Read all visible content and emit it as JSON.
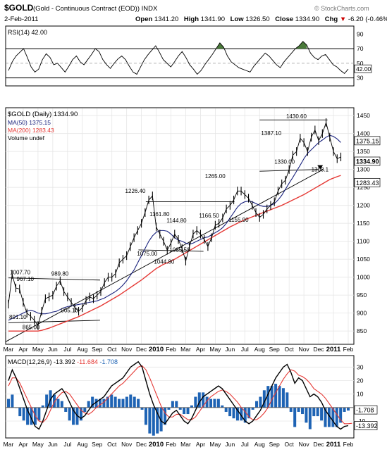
{
  "header": {
    "title": "$GOLD",
    "subtitle": "(Gold - Continuous Contract (EOD)) INDX",
    "watermark": "© StockCharts.com",
    "date": "2-Feb-2011",
    "open_label": "Open",
    "open": "1341.20",
    "high_label": "High",
    "high": "1341.90",
    "low_label": "Low",
    "low": "1326.50",
    "close_label": "Close",
    "close": "1334.90",
    "chg_label": "Chg",
    "chg": "-6.20 (-0.46%)",
    "chg_arrow": "▼"
  },
  "colors": {
    "price": "#000000",
    "ma50": "#1a237e",
    "ma200": "#e53935",
    "macd": "#000000",
    "signal": "#e53935",
    "hist": "#1e63b4",
    "overbought_fill": "#4a7a3a",
    "legend_blue": "#1a237e",
    "legend_red": "#e53935"
  },
  "chart_data": [
    {
      "type": "line",
      "panel": "rsi",
      "legend": "RSI(14) 42.00",
      "ylim": [
        20,
        100
      ],
      "y_ticks": [
        30,
        50,
        70,
        90
      ],
      "reference_lines": [
        30,
        70
      ],
      "last_value": "42.00",
      "series": [
        {
          "values": [
            40,
            52,
            60,
            65,
            70,
            58,
            45,
            38,
            42,
            55,
            63,
            58,
            48,
            50,
            44,
            38,
            46,
            55,
            60,
            52,
            48,
            55,
            62,
            70,
            66,
            55,
            48,
            43,
            50,
            56,
            60,
            55,
            46,
            38,
            35,
            45,
            55,
            62,
            68,
            74,
            65,
            55,
            50,
            45,
            52,
            60,
            66,
            58,
            48,
            42,
            35,
            40,
            48,
            55,
            62,
            70,
            78,
            72,
            60,
            52,
            48,
            44,
            42,
            40,
            38,
            46,
            52,
            58,
            64,
            60,
            54,
            48,
            44,
            52,
            58,
            64,
            70,
            74,
            80,
            75,
            64,
            58,
            55,
            60,
            62,
            55,
            48,
            45,
            40,
            36,
            42
          ]
        }
      ]
    },
    {
      "type": "line",
      "panel": "price",
      "legend": [
        {
          "name": "$GOLD (Daily) 1334.90",
          "color": "#000000"
        },
        {
          "name": "MA(50) 1375.15",
          "color": "#1a237e"
        },
        {
          "name": "MA(200) 1283.43",
          "color": "#e53935"
        },
        {
          "name": "Volume undef",
          "color": "#000000"
        }
      ],
      "ylim": [
        815,
        1470
      ],
      "y_ticks": [
        850,
        900,
        950,
        1000,
        1050,
        1100,
        1150,
        1200,
        1250,
        1300,
        1350,
        1400,
        1450
      ],
      "x_ticks": [
        "Mar",
        "Apr",
        "May",
        "Jun",
        "Jul",
        "Aug",
        "Sep",
        "Oct",
        "Nov",
        "Dec",
        "2010",
        "Feb",
        "Mar",
        "Apr",
        "May",
        "Jun",
        "Jul",
        "Aug",
        "Sep",
        "Oct",
        "Nov",
        "Dec",
        "2011",
        "Feb"
      ],
      "x": [
        0,
        0.25,
        0.5,
        0.75,
        1,
        1.25,
        1.5,
        1.75,
        2,
        2.25,
        2.5,
        2.75,
        3,
        3.25,
        3.5,
        3.75,
        4,
        4.25,
        4.5,
        4.75,
        5,
        5.25,
        5.5,
        5.75,
        6,
        6.25,
        6.5,
        6.75,
        7,
        7.25,
        7.5,
        7.75,
        8,
        8.25,
        8.5,
        8.75,
        9,
        9.25,
        9.5,
        9.75,
        10,
        10.25,
        10.5,
        10.75,
        11,
        11.25,
        11.5,
        11.75,
        12,
        12.25,
        12.5,
        12.75,
        13,
        13.25,
        13.5,
        13.75,
        14,
        14.25,
        14.5,
        14.75,
        15,
        15.25,
        15.5,
        15.75,
        16,
        16.25,
        16.5,
        16.75,
        17,
        17.25,
        17.5,
        17.75,
        18,
        18.25,
        18.5,
        18.75,
        19,
        19.25,
        19.5,
        19.75,
        20,
        20.25,
        20.5,
        20.75,
        21,
        21.25,
        21.5,
        21.75,
        22,
        22.25,
        22.5
      ],
      "series": [
        {
          "values": [
            925,
            1007.7,
            970,
            967.1,
            930,
            900,
            891.1,
            880,
            865,
            905,
            940,
            945,
            950,
            975,
            989.8,
            960,
            945,
            930,
            915,
            905.1,
            915,
            935,
            945,
            940,
            950,
            960,
            985,
            1000,
            1000,
            1010,
            1040,
            1050,
            1060,
            1085,
            1110,
            1130,
            1150,
            1180,
            1215,
            1226.4,
            1140,
            1120,
            1100,
            1075,
            1095,
            1120,
            1105,
            1080,
            1044.8,
            1085,
            1120,
            1130,
            1120,
            1105,
            1085.5,
            1110,
            1144.8,
            1150,
            1165,
            1190,
            1200,
            1215,
            1240,
            1240,
            1230,
            1220,
            1200,
            1180,
            1166.5,
            1175,
            1190,
            1200,
            1210,
            1240,
            1260,
            1270,
            1300,
            1340,
            1350,
            1387.1,
            1375,
            1350,
            1390,
            1410,
            1380,
            1400,
            1430.6,
            1390,
            1350,
            1330,
            1334.9
          ]
        },
        {
          "values": [
            880,
            885,
            890,
            895,
            900,
            905,
            908,
            905,
            900,
            898,
            898,
            900,
            903,
            905,
            910,
            915,
            918,
            920,
            922,
            924,
            926,
            928,
            930,
            932,
            934,
            938,
            942,
            948,
            954,
            960,
            968,
            978,
            990,
            1005,
            1020,
            1040,
            1060,
            1080,
            1100,
            1115,
            1125,
            1130,
            1130,
            1128,
            1120,
            1110,
            1103,
            1100,
            1095,
            1092,
            1095,
            1100,
            1105,
            1110,
            1112,
            1118,
            1124,
            1130,
            1138,
            1150,
            1165,
            1180,
            1195,
            1205,
            1210,
            1212,
            1210,
            1205,
            1200,
            1197,
            1197,
            1200,
            1205,
            1215,
            1228,
            1245,
            1262,
            1278,
            1295,
            1312,
            1330,
            1345,
            1355,
            1365,
            1375,
            1382,
            1390,
            1395,
            1392,
            1385,
            1375.15
          ]
        },
        {
          "values": [
            850,
            850,
            850,
            850,
            850,
            850,
            850,
            850,
            850,
            852,
            855,
            858,
            862,
            866,
            870,
            874,
            878,
            882,
            886,
            890,
            895,
            900,
            905,
            910,
            915,
            920,
            926,
            932,
            938,
            944,
            950,
            957,
            964,
            971,
            978,
            985,
            992,
            1000,
            1008,
            1016,
            1024,
            1030,
            1036,
            1040,
            1045,
            1050,
            1056,
            1062,
            1068,
            1074,
            1080,
            1086,
            1092,
            1098,
            1104,
            1110,
            1116,
            1122,
            1128,
            1134,
            1140,
            1145,
            1150,
            1155,
            1160,
            1164,
            1168,
            1172,
            1176,
            1180,
            1184,
            1188,
            1192,
            1196,
            1200,
            1205,
            1210,
            1215,
            1220,
            1225,
            1230,
            1236,
            1242,
            1248,
            1254,
            1260,
            1266,
            1272,
            1276,
            1280,
            1283.43
          ]
        }
      ],
      "annotations": [
        "1007.70",
        "967.10",
        "989.80",
        "891.10",
        "865.00",
        "905.10",
        "1226.40",
        "1161.80",
        "1075.00",
        "1144.80",
        "1085.50",
        "1044.80",
        "1166.50",
        "1265.00",
        "1155.90",
        "1387.10",
        "1430.60",
        "1330.00",
        "1308.1"
      ],
      "last_labels": {
        "price": "1334.90",
        "ma50": "1375.15",
        "ma200": "1283.43"
      }
    },
    {
      "type": "line",
      "panel": "macd",
      "legend": [
        {
          "name": "MACD(12,26,9)",
          "value": "-13.392",
          "color": "#000000"
        },
        {
          "name": "",
          "value": "-11.684",
          "color": "#e53935"
        },
        {
          "name": "",
          "value": "-1.708",
          "color": "#1e63b4"
        }
      ],
      "ylim": [
        -22,
        38
      ],
      "y_ticks": [
        -10,
        0,
        10,
        20,
        30
      ],
      "last_labels": {
        "hist": "-1.708",
        "macd": "-13.392"
      },
      "series": [
        {
          "values": [
            20,
            28,
            22,
            14,
            6,
            -2,
            -8,
            -14,
            -16,
            -10,
            -2,
            6,
            10,
            12,
            14,
            10,
            4,
            -2,
            -6,
            -8,
            -6,
            -2,
            2,
            4,
            6,
            8,
            12,
            16,
            18,
            20,
            22,
            26,
            30,
            32,
            34,
            30,
            20,
            10,
            2,
            -4,
            -10,
            -12,
            -8,
            -4,
            -2,
            -6,
            -10,
            -12,
            -8,
            -2,
            4,
            8,
            10,
            12,
            14,
            16,
            14,
            10,
            6,
            2,
            -2,
            -6,
            -10,
            -12,
            -10,
            -6,
            -2,
            4,
            10,
            16,
            22,
            26,
            30,
            32,
            26,
            18,
            22,
            20,
            14,
            8,
            10,
            8,
            4,
            -2,
            -6,
            -10,
            -14,
            -16,
            -14,
            -13.392
          ]
        },
        {
          "values": [
            16,
            22,
            22,
            18,
            12,
            6,
            0,
            -6,
            -10,
            -11,
            -8,
            -2,
            4,
            8,
            11,
            12,
            10,
            6,
            2,
            -2,
            -4,
            -5,
            -3,
            0,
            2,
            4,
            7,
            10,
            13,
            16,
            18,
            21,
            24,
            27,
            30,
            31,
            28,
            22,
            15,
            8,
            1,
            -4,
            -7,
            -7,
            -5,
            -5,
            -7,
            -9,
            -9,
            -7,
            -3,
            1,
            5,
            8,
            10,
            12,
            13,
            12,
            10,
            7,
            4,
            0,
            -3,
            -7,
            -9,
            -9,
            -7,
            -4,
            0,
            6,
            11,
            16,
            21,
            25,
            28,
            27,
            24,
            23,
            21,
            18,
            14,
            12,
            10,
            7,
            3,
            -1,
            -5,
            -9,
            -12,
            -12,
            -11.684
          ]
        }
      ]
    }
  ]
}
